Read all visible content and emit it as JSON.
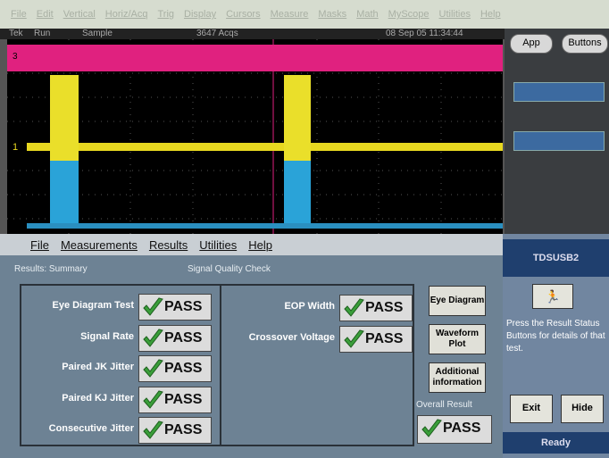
{
  "menu": [
    "File",
    "Edit",
    "Vertical",
    "Horiz/Acq",
    "Trig",
    "Display",
    "Cursors",
    "Measure",
    "Masks",
    "Math",
    "MyScope",
    "Utilities",
    "Help"
  ],
  "status": {
    "brand": "Tek",
    "state": "Run",
    "mode": "Sample",
    "acqs": "3647 Acqs",
    "timestamp": "08 Sep 05 11:34:44"
  },
  "channel_markers": [
    "3",
    "1"
  ],
  "scope_buttons": [
    "App",
    "Buttons"
  ],
  "app": {
    "menu": [
      "File",
      "Measurements",
      "Results",
      "Utilities",
      "Help"
    ],
    "results_label": "Results: Summary",
    "panel_title": "Signal Quality Check",
    "tests_left": [
      {
        "label": "Eye Diagram Test",
        "result": "PASS"
      },
      {
        "label": "Signal Rate",
        "result": "PASS"
      },
      {
        "label": "Paired JK Jitter",
        "result": "PASS"
      },
      {
        "label": "Paired KJ Jitter",
        "result": "PASS"
      },
      {
        "label": "Consecutive Jitter",
        "result": "PASS"
      }
    ],
    "tests_right": [
      {
        "label": "EOP Width",
        "result": "PASS"
      },
      {
        "label": "Crossover Voltage",
        "result": "PASS"
      }
    ],
    "buttons": [
      "Eye Diagram",
      "Waveform Plot",
      "Additional information"
    ],
    "overall_label": "Overall Result",
    "overall_result": "PASS"
  },
  "side": {
    "title": "TDSUSB2",
    "help": "Press the Result Status Buttons for details of that test.",
    "buttons": [
      "Exit",
      "Hide"
    ],
    "status": "Ready"
  }
}
